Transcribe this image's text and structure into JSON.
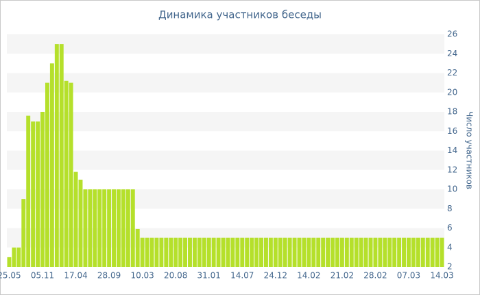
{
  "chart_data": {
    "type": "bar",
    "title": "Динамика участников беседы",
    "y_label": "Число участников",
    "categories": [
      "25.05",
      null,
      null,
      null,
      null,
      null,
      null,
      "05.11",
      null,
      null,
      null,
      null,
      null,
      null,
      "17.04",
      null,
      null,
      null,
      null,
      null,
      null,
      "28.09",
      null,
      null,
      null,
      null,
      null,
      null,
      "10.03",
      null,
      null,
      null,
      null,
      null,
      null,
      "20.08",
      null,
      null,
      null,
      null,
      null,
      null,
      "31.01",
      null,
      null,
      null,
      null,
      null,
      null,
      "14.07",
      null,
      null,
      null,
      null,
      null,
      null,
      "24.12",
      null,
      null,
      null,
      null,
      null,
      null,
      "14.02",
      null,
      null,
      null,
      null,
      null,
      null,
      "21.02",
      null,
      null,
      null,
      null,
      null,
      null,
      "28.02",
      null,
      null,
      null,
      null,
      null,
      null,
      "07.03",
      null,
      null,
      null,
      null,
      null,
      null,
      "14.03"
    ],
    "values": [
      3,
      4,
      4,
      9,
      17.6,
      17,
      17,
      18,
      21,
      23,
      25,
      25,
      21.2,
      21,
      11.8,
      11,
      10,
      10,
      10,
      10,
      10,
      10,
      10,
      10,
      10,
      10,
      10,
      5.9,
      5,
      5,
      5,
      5,
      5,
      5,
      5,
      5,
      5,
      5,
      5,
      5,
      5,
      5,
      5,
      5,
      5,
      5,
      5,
      5,
      5,
      5,
      5,
      5,
      5,
      5,
      5,
      5,
      5,
      5,
      5,
      5,
      5,
      5,
      5,
      5,
      5,
      5,
      5,
      5,
      5,
      5,
      5,
      5,
      5,
      5,
      5,
      5,
      5,
      5,
      5,
      5,
      5,
      5,
      5,
      5,
      5,
      5,
      5,
      5,
      5,
      5,
      5,
      5
    ],
    "color": "#b5e02b",
    "ylim": [
      2,
      26
    ],
    "yticks": [
      2,
      4,
      6,
      8,
      10,
      12,
      14,
      16,
      18,
      20,
      22,
      24,
      26
    ],
    "y_axis_side": "right",
    "grid": true
  }
}
